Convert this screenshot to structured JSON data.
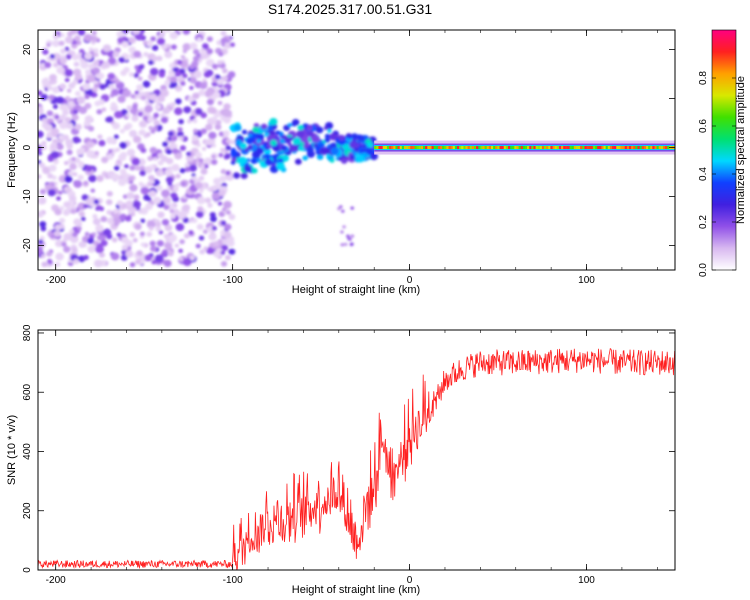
{
  "figure_title": "S174.2025.317.00.51.G31",
  "chart_data": [
    {
      "type": "heatmap",
      "xlabel": "Height of straight line (km)",
      "ylabel": "Frequency (Hz)",
      "xlim": [
        -210,
        150
      ],
      "ylim": [
        -25,
        24
      ],
      "xticks": [
        -200,
        -100,
        0,
        100
      ],
      "yticks": [
        -20,
        -10,
        0,
        10,
        20
      ],
      "colorbar": {
        "label": "Normalized spectral amplitude",
        "range": [
          0,
          1
        ],
        "ticks": [
          0.0,
          0.2,
          0.4,
          0.6,
          0.8
        ],
        "colormap": [
          "#ffffff",
          "#d8b8f0",
          "#9050e8",
          "#4020e0",
          "#1040ff",
          "#00d8ff",
          "#00e070",
          "#40e000",
          "#d8e800",
          "#ffa000",
          "#ff2020",
          "#ff0080"
        ]
      },
      "regions": [
        {
          "name": "noise scatter",
          "x_range": [
            -210,
            -100
          ],
          "freq_range": [
            -24,
            24
          ],
          "amplitude": [
            0.05,
            0.25
          ]
        },
        {
          "name": "onset patches",
          "x_range": [
            -100,
            -20
          ],
          "freq_range": [
            -8,
            8
          ],
          "amplitude": [
            0.2,
            0.5
          ]
        },
        {
          "name": "outlier tail",
          "x_range": [
            -40,
            -32
          ],
          "freq_range": [
            -20,
            -12
          ],
          "amplitude": [
            0.1,
            0.2
          ]
        },
        {
          "name": "carrier line",
          "x_range": [
            -20,
            150
          ],
          "freq_center": 0,
          "amplitude": [
            0.6,
            0.95
          ]
        }
      ]
    },
    {
      "type": "line",
      "xlabel": "Height of straight line (km)",
      "ylabel": "SNR (10 * v/v)",
      "xlim": [
        -210,
        150
      ],
      "ylim": [
        0,
        810
      ],
      "xticks": [
        -200,
        -100,
        0,
        100
      ],
      "yticks": [
        0,
        200,
        400,
        600,
        800
      ],
      "line_color": "#ff2020",
      "series": [
        {
          "name": "SNR",
          "control_points": {
            "x": [
              -210,
              -100,
              -95,
              -90,
              -80,
              -70,
              -60,
              -50,
              -40,
              -30,
              -20,
              -15,
              -10,
              -5,
              0,
              5,
              10,
              20,
              30,
              40,
              60,
              80,
              100,
              120,
              150
            ],
            "y": [
              20,
              20,
              40,
              90,
              130,
              140,
              160,
              200,
              240,
              60,
              250,
              420,
              280,
              330,
              420,
              450,
              500,
              640,
              680,
              700,
              700,
              705,
              710,
              700,
              700
            ]
          },
          "noise_amplitude": 80
        }
      ]
    }
  ]
}
